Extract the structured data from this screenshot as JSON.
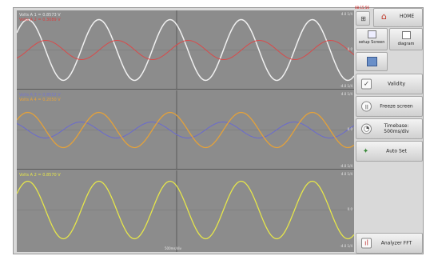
{
  "clock": "08:15:56",
  "home_label": "HOME",
  "buttons": {
    "setup_screen": "setup Screen",
    "diagram": "diagram",
    "validity": "Validity",
    "freeze_screen": "Freeze screen",
    "timebase": "Timebase: 500ms/div",
    "auto_set": "Auto Set",
    "analyzer_fft": "Analyzer FFT"
  },
  "panels": [
    {
      "labels": [
        {
          "text": "Volts A 1 = 0.8573 V",
          "color": "#e6e6e6"
        },
        {
          "text": "Volts A 2 = 0.3089 V",
          "color": "#d94040"
        }
      ],
      "scale_top": "4.0 1/4",
      "scale_mid": "0.0",
      "scale_bot": "-4.0 1/4"
    },
    {
      "labels": [
        {
          "text": "Volts A 3 = 0.8552 V",
          "color": "#7777cc"
        },
        {
          "text": "Volts A 4 = 0.2050 V",
          "color": "#e8a23a"
        }
      ],
      "scale_top": "4.0 1/4",
      "scale_mid": "0.0",
      "scale_bot": "-4.0 1/4"
    },
    {
      "labels": [
        {
          "text": "Volts A 2 = 0.8570 V",
          "color": "#e6e64a"
        }
      ],
      "scale_top": "4.0 1/4",
      "scale_mid": "0.0",
      "scale_bot": "-4.0 1/4"
    }
  ],
  "time_label": "500ms/div",
  "colors": {
    "trace_white": "#f0f0f0",
    "trace_red": "#d94a4a",
    "trace_blue": "#6a6acf",
    "trace_orange": "#e3a13a",
    "trace_yellow": "#e6e64a"
  },
  "icons": {
    "home": "home-icon",
    "setup": "setup-screen-icon",
    "diagram": "diagram-icon",
    "save": "save-icon",
    "validity": "checkbox-icon",
    "freeze": "pause-icon",
    "timebase": "gauge-icon",
    "auto_set": "wand-icon",
    "fft": "fft-icon"
  }
}
